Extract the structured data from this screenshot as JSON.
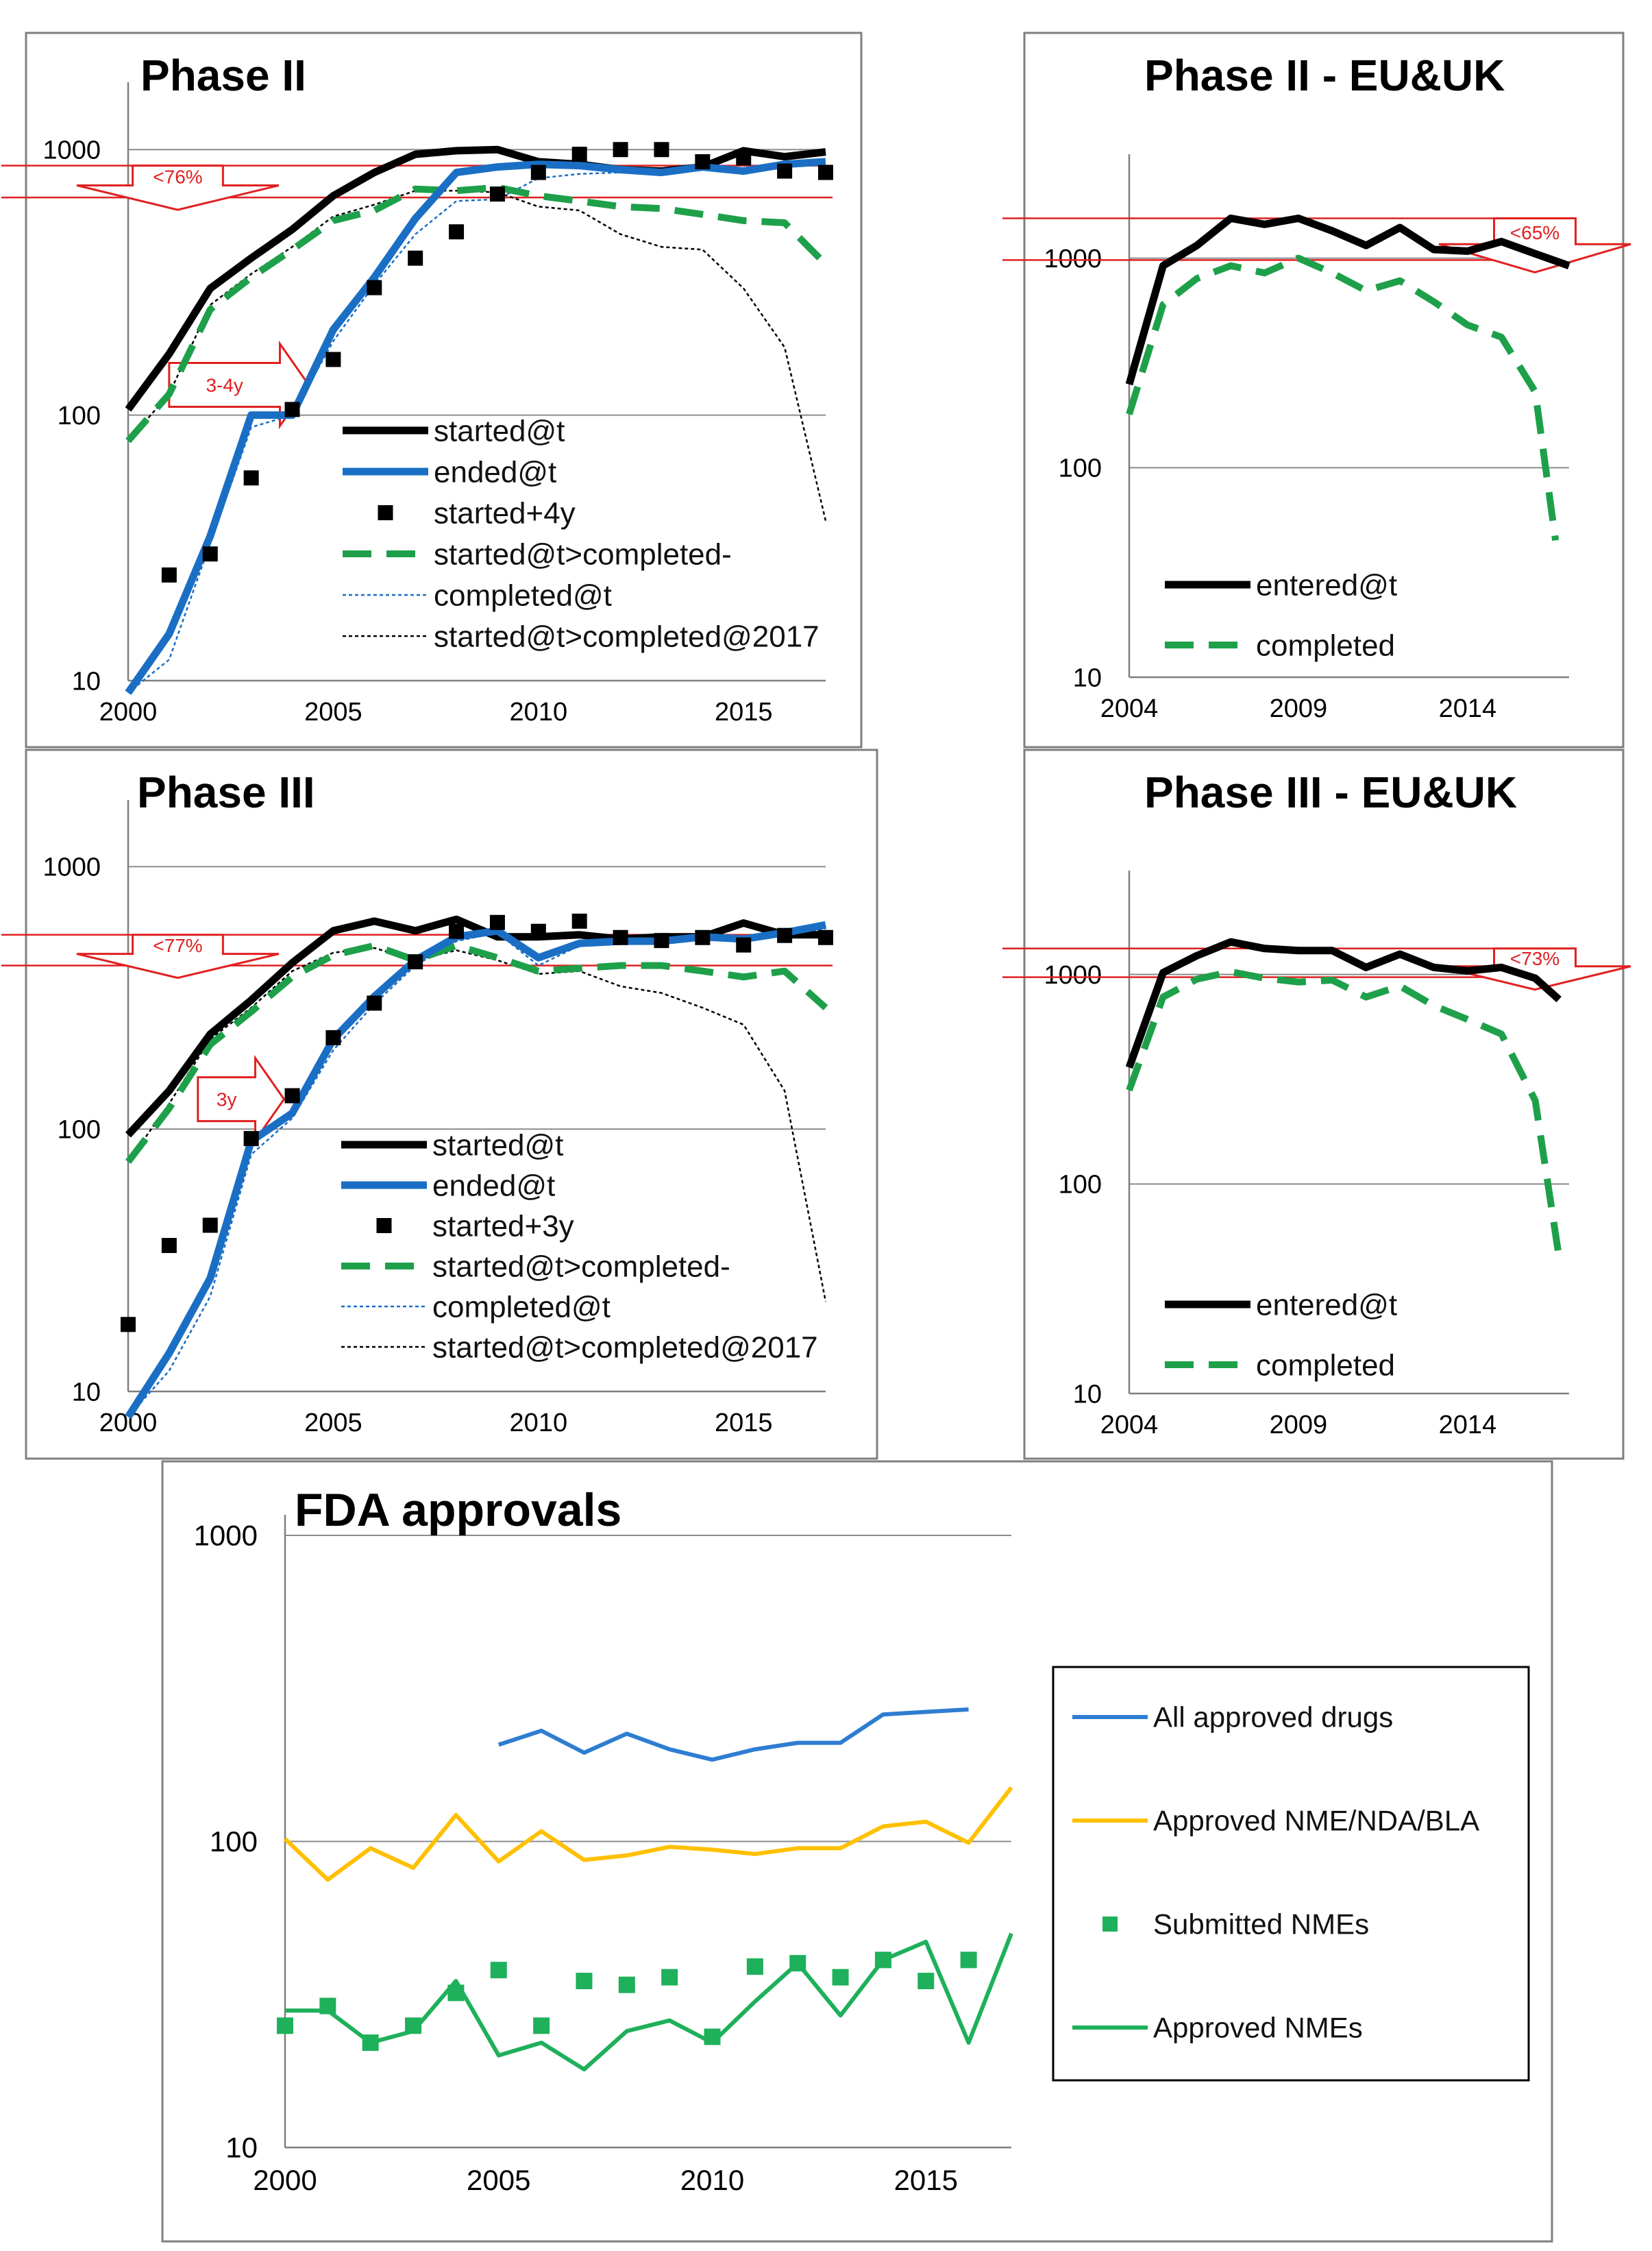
{
  "chart_data": [
    {
      "id": "phase2",
      "type": "line",
      "title": "Phase II",
      "xlim": [
        2000,
        2017
      ],
      "ylim": [
        10,
        1500
      ],
      "yscale": "log",
      "xticks": [
        2000,
        2005,
        2010,
        2015
      ],
      "yticks": [
        10,
        100,
        1000
      ],
      "legend_position": "bottom-right",
      "series": [
        {
          "name": "started@t",
          "style": "solid-thick",
          "color": "#000000",
          "x": [
            2000,
            2001,
            2002,
            2003,
            2004,
            2005,
            2006,
            2007,
            2008,
            2009,
            2010,
            2011,
            2012,
            2013,
            2014,
            2015,
            2016,
            2017
          ],
          "y": [
            105,
            170,
            300,
            390,
            500,
            670,
            820,
            960,
            990,
            1000,
            900,
            880,
            840,
            830,
            860,
            990,
            940,
            980
          ]
        },
        {
          "name": "ended@t",
          "style": "solid-thick",
          "color": "#1a6fc4",
          "x": [
            2000,
            2001,
            2002,
            2003,
            2004,
            2005,
            2006,
            2007,
            2008,
            2009,
            2010,
            2011,
            2012,
            2013,
            2014,
            2015,
            2016,
            2017
          ],
          "y": [
            9,
            15,
            35,
            100,
            100,
            210,
            330,
            550,
            820,
            860,
            880,
            870,
            840,
            820,
            860,
            830,
            880,
            900
          ]
        },
        {
          "name": "started+4y",
          "style": "marker",
          "color": "#000000",
          "x": [
            2001,
            2002,
            2003,
            2004,
            2005,
            2006,
            2007,
            2008,
            2009,
            2010,
            2011,
            2012,
            2013,
            2014,
            2015,
            2016,
            2017
          ],
          "y": [
            25,
            30,
            58,
            105,
            162,
            302,
            390,
            490,
            680,
            820,
            960,
            1000,
            1000,
            900,
            930,
            830,
            820
          ]
        },
        {
          "name": "started@t>completed-",
          "style": "dashed-thick",
          "color": "#1ea04a",
          "x": [
            2000,
            2001,
            2002,
            2003,
            2004,
            2005,
            2006,
            2007,
            2008,
            2009,
            2010,
            2011,
            2012,
            2013,
            2014,
            2015,
            2016,
            2017
          ],
          "y": [
            80,
            120,
            250,
            330,
            420,
            540,
            590,
            710,
            700,
            720,
            670,
            640,
            610,
            600,
            570,
            540,
            530,
            370
          ]
        },
        {
          "name": "completed@t",
          "style": "dotted-thin",
          "color": "#1a6fc4",
          "x": [
            2000,
            2001,
            2002,
            2003,
            2004,
            2005,
            2006,
            2007,
            2008,
            2009,
            2010,
            2011,
            2012,
            2013,
            2014,
            2015,
            2016,
            2017
          ],
          "y": [
            9,
            12,
            33,
            90,
            100,
            190,
            310,
            480,
            640,
            650,
            780,
            810,
            820,
            820,
            850,
            840,
            860,
            880
          ]
        },
        {
          "name": "started@t>completed@2017",
          "style": "dotted-thin",
          "color": "#000000",
          "x": [
            2000,
            2001,
            2002,
            2003,
            2004,
            2005,
            2006,
            2007,
            2008,
            2009,
            2010,
            2011,
            2012,
            2013,
            2014,
            2015,
            2016,
            2017
          ],
          "y": [
            80,
            120,
            260,
            340,
            430,
            560,
            620,
            700,
            700,
            690,
            610,
            590,
            480,
            430,
            420,
            300,
            180,
            40
          ]
        }
      ],
      "annotations": [
        {
          "text": "<76%",
          "type": "down-arrow",
          "from": 870,
          "to": 660
        },
        {
          "text": "3-4y",
          "type": "right-arrow",
          "x_from": 2001,
          "x_to": 2004.4,
          "y": 130
        }
      ]
    },
    {
      "id": "phase2eu",
      "type": "line",
      "title": "Phase II - EU&UK",
      "xlim": [
        2004,
        2017
      ],
      "ylim": [
        10,
        2500
      ],
      "yscale": "log",
      "xticks": [
        2004,
        2009,
        2014
      ],
      "yticks": [
        10,
        100,
        1000
      ],
      "legend_position": "bottom-right",
      "series": [
        {
          "name": "entered@t",
          "style": "solid-thick",
          "color": "#000000",
          "x": [
            2004,
            2005,
            2006,
            2007,
            2008,
            2009,
            2010,
            2011,
            2012,
            2013,
            2014,
            2015,
            2016,
            2017
          ],
          "y": [
            250,
            920,
            1150,
            1550,
            1450,
            1550,
            1350,
            1150,
            1400,
            1100,
            1080,
            1200,
            1050,
            920
          ]
        },
        {
          "name": "completed",
          "style": "dashed-thick",
          "color": "#1ea04a",
          "x": [
            2004,
            2005,
            2006,
            2007,
            2008,
            2009,
            2010,
            2011,
            2012,
            2013,
            2014,
            2015,
            2016,
            2016.6
          ],
          "y": [
            180,
            600,
            800,
            920,
            850,
            1000,
            850,
            700,
            780,
            620,
            480,
            420,
            230,
            45
          ]
        }
      ],
      "annotations": [
        {
          "text": "<65%",
          "type": "down-arrow",
          "from": 1550,
          "to": 980
        }
      ]
    },
    {
      "id": "phase3",
      "type": "line",
      "title": "Phase III",
      "xlim": [
        2000,
        2017
      ],
      "ylim": [
        10,
        1500
      ],
      "yscale": "log",
      "xticks": [
        2000,
        2005,
        2010,
        2015
      ],
      "yticks": [
        10,
        100,
        1000
      ],
      "legend_position": "bottom-right",
      "series": [
        {
          "name": "started@t",
          "style": "solid-thick",
          "color": "#000000",
          "x": [
            2000,
            2001,
            2002,
            2003,
            2004,
            2005,
            2006,
            2007,
            2008,
            2009,
            2010,
            2011,
            2012,
            2013,
            2014,
            2015,
            2016,
            2017
          ],
          "y": [
            95,
            140,
            230,
            310,
            430,
            570,
            620,
            570,
            630,
            540,
            540,
            550,
            530,
            540,
            540,
            610,
            550,
            550
          ]
        },
        {
          "name": "ended@t",
          "style": "solid-thick",
          "color": "#1a6fc4",
          "x": [
            2000,
            2001,
            2002,
            2003,
            2004,
            2005,
            2006,
            2007,
            2008,
            2009,
            2010,
            2011,
            2012,
            2013,
            2014,
            2015,
            2016,
            2017
          ],
          "y": [
            8,
            14,
            27,
            90,
            115,
            220,
            320,
            440,
            540,
            570,
            450,
            510,
            520,
            520,
            540,
            530,
            560,
            600
          ]
        },
        {
          "name": "started+3y",
          "style": "marker",
          "color": "#000000",
          "x": [
            2000,
            2001,
            2002,
            2003,
            2004,
            2005,
            2006,
            2007,
            2008,
            2009,
            2010,
            2011,
            2012,
            2013,
            2014,
            2015,
            2016,
            2017
          ],
          "y": [
            18,
            36,
            43,
            92,
            134,
            223,
            302,
            434,
            567,
            613,
            567,
            620,
            537,
            523,
            537,
            503,
            547,
            537
          ]
        },
        {
          "name": "started@t>completed-",
          "style": "dashed-thick",
          "color": "#1ea04a",
          "x": [
            2000,
            2001,
            2002,
            2003,
            2004,
            2005,
            2006,
            2007,
            2008,
            2009,
            2010,
            2011,
            2012,
            2013,
            2014,
            2015,
            2016,
            2017
          ],
          "y": [
            75,
            120,
            210,
            280,
            380,
            460,
            500,
            440,
            500,
            450,
            400,
            410,
            420,
            420,
            400,
            380,
            400,
            290
          ]
        },
        {
          "name": "completed@t",
          "style": "dotted-thin",
          "color": "#1a6fc4",
          "x": [
            2000,
            2001,
            2002,
            2003,
            2004,
            2005,
            2006,
            2007,
            2008,
            2009,
            2010,
            2011,
            2012,
            2013,
            2014,
            2015,
            2016,
            2017
          ],
          "y": [
            8,
            12,
            23,
            80,
            110,
            200,
            300,
            420,
            520,
            560,
            420,
            500,
            510,
            510,
            530,
            520,
            550,
            580
          ]
        },
        {
          "name": "started@t>completed@2017",
          "style": "dotted-thin",
          "color": "#000000",
          "x": [
            2000,
            2001,
            2002,
            2003,
            2004,
            2005,
            2006,
            2007,
            2008,
            2009,
            2010,
            2011,
            2012,
            2013,
            2014,
            2015,
            2016,
            2017
          ],
          "y": [
            75,
            125,
            220,
            290,
            400,
            470,
            490,
            440,
            480,
            440,
            390,
            400,
            350,
            330,
            290,
            250,
            140,
            22
          ]
        }
      ],
      "annotations": [
        {
          "text": "<77%",
          "type": "down-arrow",
          "from": 550,
          "to": 420
        },
        {
          "text": "3y",
          "type": "right-arrow",
          "x_from": 2001.7,
          "x_to": 2003.8,
          "y": 130
        }
      ]
    },
    {
      "id": "phase3eu",
      "type": "line",
      "title": "Phase III - EU&UK",
      "xlim": [
        2004,
        2017
      ],
      "ylim": [
        10,
        2500
      ],
      "yscale": "log",
      "xticks": [
        2004,
        2009,
        2014
      ],
      "yticks": [
        10,
        100,
        1000
      ],
      "legend_position": "bottom-right",
      "series": [
        {
          "name": "entered@t",
          "style": "solid-thick",
          "color": "#000000",
          "x": [
            2004,
            2005,
            2006,
            2007,
            2008,
            2009,
            2010,
            2011,
            2012,
            2013,
            2014,
            2015,
            2016,
            2016.7
          ],
          "y": [
            360,
            1020,
            1230,
            1430,
            1330,
            1300,
            1300,
            1080,
            1250,
            1080,
            1040,
            1080,
            960,
            760
          ]
        },
        {
          "name": "completed",
          "style": "dashed-thick",
          "color": "#1ea04a",
          "x": [
            2004,
            2005,
            2006,
            2007,
            2008,
            2009,
            2010,
            2011,
            2012,
            2013,
            2014,
            2015,
            2016,
            2016.7
          ],
          "y": [
            280,
            780,
            950,
            1030,
            960,
            920,
            940,
            780,
            880,
            710,
            610,
            520,
            250,
            45
          ]
        }
      ],
      "annotations": [
        {
          "text": "<73%",
          "type": "down-arrow",
          "from": 1330,
          "to": 970
        }
      ]
    },
    {
      "id": "fda",
      "type": "line",
      "title": "FDA approvals",
      "xlim": [
        2000,
        2017
      ],
      "ylim": [
        10,
        1000
      ],
      "yscale": "log",
      "xticks": [
        2000,
        2005,
        2010,
        2015
      ],
      "yticks": [
        10,
        100,
        1000
      ],
      "legend_position": "right",
      "series": [
        {
          "name": "All approved drugs",
          "style": "solid",
          "color": "#2e7dd1",
          "x": [
            2005,
            2006,
            2007,
            2008,
            2009,
            2010,
            2011,
            2012,
            2013,
            2014,
            2015,
            2016
          ],
          "y": [
            207,
            230,
            195,
            225,
            200,
            185,
            200,
            210,
            210,
            260,
            265,
            270
          ]
        },
        {
          "name": "Approved NME/NDA/BLA",
          "style": "solid",
          "color": "#ffc000",
          "x": [
            2000,
            2001,
            2002,
            2003,
            2004,
            2005,
            2006,
            2007,
            2008,
            2009,
            2010,
            2011,
            2012,
            2013,
            2014,
            2015,
            2016,
            2017
          ],
          "y": [
            102,
            75,
            95,
            82,
            122,
            86,
            108,
            87,
            90,
            96,
            94,
            91,
            95,
            95,
            112,
            116,
            99,
            150
          ]
        },
        {
          "name": "Submitted NMEs",
          "style": "marker",
          "color": "#1eb05a",
          "x": [
            2000,
            2001,
            2002,
            2003,
            2004,
            2005,
            2006,
            2007,
            2008,
            2009,
            2010,
            2011,
            2012,
            2013,
            2014,
            2015,
            2016
          ],
          "y": [
            25,
            29,
            22,
            25,
            32,
            38,
            25,
            35,
            34,
            36,
            23,
            39,
            40,
            36,
            41,
            35,
            41
          ]
        },
        {
          "name": "Approved NMEs",
          "style": "solid",
          "color": "#1eb05a",
          "x": [
            2000,
            2001,
            2002,
            2003,
            2004,
            2005,
            2006,
            2007,
            2008,
            2009,
            2010,
            2011,
            2012,
            2013,
            2014,
            2015,
            2016,
            2017
          ],
          "y": [
            28,
            28,
            22,
            24,
            35,
            20,
            22,
            18,
            24,
            26,
            22,
            30,
            40,
            27,
            41,
            47,
            22,
            50
          ]
        }
      ],
      "annotations": []
    }
  ]
}
